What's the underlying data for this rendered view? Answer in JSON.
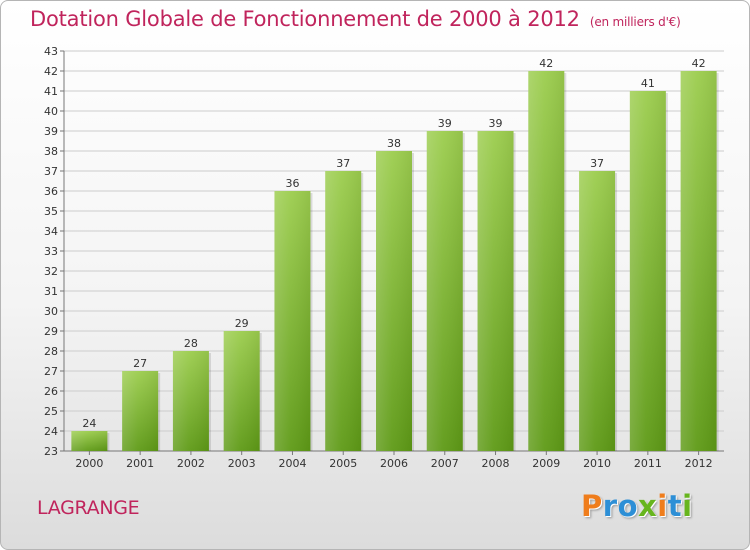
{
  "header": {
    "title": "Dotation Globale de Fonctionnement de 2000 à 2012",
    "unit": "(en milliers d'€)"
  },
  "footer": {
    "commune": "LAGRANGE",
    "brand": "Proxiti"
  },
  "colors": {
    "title": "#c0245c",
    "bar_top": "#9ccd4e",
    "bar_bottom": "#5e9a16",
    "grid": "#cccccc",
    "brand_letters": [
      "#ef7d1c",
      "#2d8fd6",
      "#2d8fd6",
      "#67b51e",
      "#ef7d1c",
      "#2d8fd6",
      "#67b51e"
    ]
  },
  "chart_data": {
    "type": "bar",
    "title": "Dotation Globale de Fonctionnement de 2000 à 2012",
    "subtitle": "(en milliers d'€)",
    "xlabel": "",
    "ylabel": "",
    "categories": [
      "2000",
      "2001",
      "2002",
      "2003",
      "2004",
      "2005",
      "2006",
      "2007",
      "2008",
      "2009",
      "2010",
      "2011",
      "2012"
    ],
    "values": [
      24,
      27,
      28,
      29,
      36,
      37,
      38,
      39,
      39,
      42,
      37,
      41,
      42
    ],
    "ylim": [
      23,
      43
    ],
    "yticks": [
      23,
      24,
      25,
      26,
      27,
      28,
      29,
      30,
      31,
      32,
      33,
      34,
      35,
      36,
      37,
      38,
      39,
      40,
      41,
      42,
      43
    ],
    "grid": true,
    "legend": "none"
  }
}
